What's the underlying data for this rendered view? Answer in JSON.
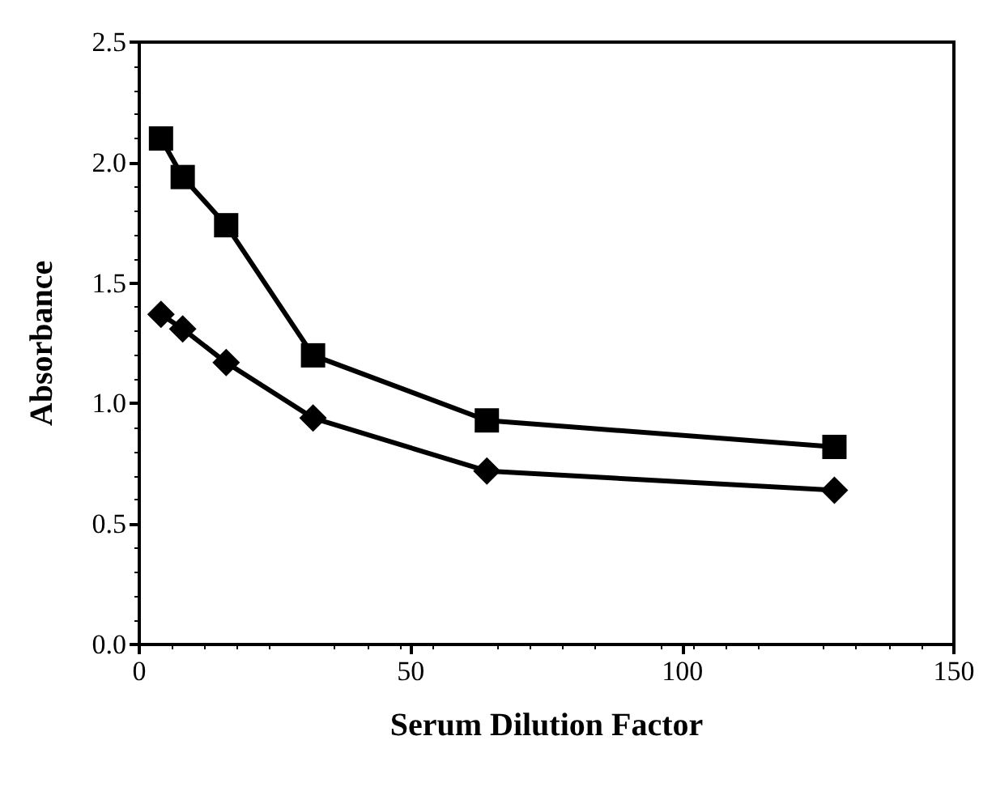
{
  "chart_data": {
    "type": "line",
    "xlabel": "Serum Dilution Factor",
    "ylabel": "Absorbance",
    "x": [
      4,
      8,
      16,
      32,
      64,
      128
    ],
    "series": [
      {
        "color": "#000000",
        "marker": "square",
        "values": [
          2.1,
          1.94,
          1.74,
          1.2,
          0.93,
          0.82
        ]
      },
      {
        "color": "#000000",
        "marker": "diamond",
        "values": [
          1.37,
          1.31,
          1.17,
          0.94,
          0.72,
          0.64
        ]
      }
    ],
    "xlim": [
      0,
      150
    ],
    "xticks": [
      0,
      50,
      100,
      150
    ],
    "ylim": [
      0,
      2.5
    ],
    "yticks": [
      {
        "value": 0,
        "label": "0.0"
      },
      {
        "value": 0.5,
        "label": "0.5"
      },
      {
        "value": 1,
        "label": "1.0"
      },
      {
        "value": 1.5,
        "label": "1.5"
      },
      {
        "value": 2,
        "label": "2.0"
      },
      {
        "value": 2.5,
        "label": "2.5"
      }
    ],
    "grid": false,
    "line_style": "solid"
  }
}
